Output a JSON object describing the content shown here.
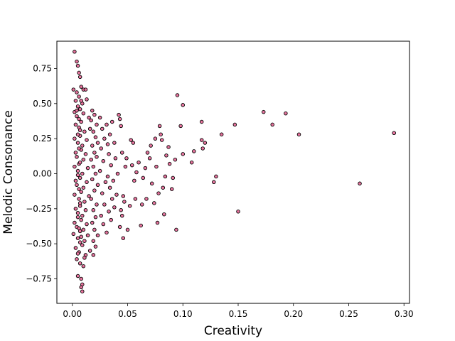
{
  "chart_data": {
    "type": "scatter",
    "title": "",
    "xlabel": "Creativity",
    "ylabel": "Melodic Consonance",
    "xlim": [
      -0.014,
      0.305
    ],
    "ylim": [
      -0.925,
      0.945
    ],
    "xticks": [
      0.0,
      0.05,
      0.1,
      0.15,
      0.2,
      0.25,
      0.3
    ],
    "xtick_labels": [
      "0.00",
      "0.05",
      "0.10",
      "0.15",
      "0.20",
      "0.25",
      "0.30"
    ],
    "yticks": [
      -0.75,
      -0.5,
      -0.25,
      0.0,
      0.25,
      0.5,
      0.75
    ],
    "ytick_labels": [
      "−0.75",
      "−0.50",
      "−0.25",
      "0.00",
      "0.25",
      "0.50",
      "0.75"
    ],
    "grid": false,
    "legend": "none",
    "marker_color": "#e8749e",
    "marker_edge_color": "#000000",
    "points": [
      [
        0.002,
        0.87
      ],
      [
        0.004,
        0.8
      ],
      [
        0.005,
        0.77
      ],
      [
        0.006,
        0.72
      ],
      [
        0.007,
        0.69
      ],
      [
        0.001,
        0.6
      ],
      [
        0.004,
        0.58
      ],
      [
        0.008,
        0.62
      ],
      [
        0.01,
        0.6
      ],
      [
        0.012,
        0.6
      ],
      [
        0.003,
        0.52
      ],
      [
        0.005,
        0.48
      ],
      [
        0.006,
        0.55
      ],
      [
        0.009,
        0.5
      ],
      [
        0.013,
        0.53
      ],
      [
        0.002,
        0.44
      ],
      [
        0.004,
        0.41
      ],
      [
        0.007,
        0.46
      ],
      [
        0.01,
        0.43
      ],
      [
        0.015,
        0.4
      ],
      [
        0.003,
        0.35
      ],
      [
        0.006,
        0.33
      ],
      [
        0.008,
        0.37
      ],
      [
        0.011,
        0.3
      ],
      [
        0.016,
        0.32
      ],
      [
        0.002,
        0.25
      ],
      [
        0.005,
        0.22
      ],
      [
        0.007,
        0.27
      ],
      [
        0.009,
        0.2
      ],
      [
        0.013,
        0.24
      ],
      [
        0.003,
        0.15
      ],
      [
        0.004,
        0.12
      ],
      [
        0.008,
        0.17
      ],
      [
        0.01,
        0.1
      ],
      [
        0.012,
        0.14
      ],
      [
        0.002,
        0.05
      ],
      [
        0.005,
        0.02
      ],
      [
        0.006,
        0.07
      ],
      [
        0.009,
        0.0
      ],
      [
        0.014,
        0.04
      ],
      [
        0.003,
        -0.05
      ],
      [
        0.004,
        -0.08
      ],
      [
        0.007,
        -0.03
      ],
      [
        0.01,
        -0.1
      ],
      [
        0.013,
        -0.06
      ],
      [
        0.002,
        -0.15
      ],
      [
        0.006,
        -0.18
      ],
      [
        0.008,
        -0.13
      ],
      [
        0.011,
        -0.2
      ],
      [
        0.015,
        -0.16
      ],
      [
        0.003,
        -0.25
      ],
      [
        0.005,
        -0.28
      ],
      [
        0.007,
        -0.23
      ],
      [
        0.009,
        -0.3
      ],
      [
        0.012,
        -0.26
      ],
      [
        0.002,
        -0.35
      ],
      [
        0.004,
        -0.38
      ],
      [
        0.008,
        -0.33
      ],
      [
        0.01,
        -0.4
      ],
      [
        0.013,
        -0.36
      ],
      [
        0.001,
        -0.43
      ],
      [
        0.005,
        -0.46
      ],
      [
        0.007,
        -0.41
      ],
      [
        0.011,
        -0.48
      ],
      [
        0.014,
        -0.44
      ],
      [
        0.003,
        -0.53
      ],
      [
        0.006,
        -0.56
      ],
      [
        0.009,
        -0.51
      ],
      [
        0.012,
        -0.58
      ],
      [
        0.004,
        -0.61
      ],
      [
        0.007,
        -0.64
      ],
      [
        0.01,
        -0.66
      ],
      [
        0.005,
        -0.73
      ],
      [
        0.008,
        -0.75
      ],
      [
        0.009,
        -0.79
      ],
      [
        0.008,
        -0.81
      ],
      [
        0.009,
        -0.84
      ],
      [
        0.011,
        -0.6
      ],
      [
        0.016,
        -0.55
      ],
      [
        0.019,
        -0.58
      ],
      [
        0.004,
        0.45
      ],
      [
        0.006,
        0.39
      ],
      [
        0.007,
        0.31
      ],
      [
        0.005,
        0.28
      ],
      [
        0.006,
        0.18
      ],
      [
        0.007,
        0.08
      ],
      [
        0.005,
        -0.01
      ],
      [
        0.006,
        -0.11
      ],
      [
        0.007,
        -0.21
      ],
      [
        0.005,
        -0.31
      ],
      [
        0.006,
        -0.39
      ],
      [
        0.007,
        -0.49
      ],
      [
        0.005,
        -0.57
      ],
      [
        0.008,
        0.52
      ],
      [
        0.008,
        -0.45
      ],
      [
        0.018,
        0.45
      ],
      [
        0.017,
        0.38
      ],
      [
        0.02,
        0.42
      ],
      [
        0.022,
        0.35
      ],
      [
        0.019,
        0.3
      ],
      [
        0.021,
        0.26
      ],
      [
        0.018,
        0.2
      ],
      [
        0.023,
        0.22
      ],
      [
        0.02,
        0.15
      ],
      [
        0.017,
        0.1
      ],
      [
        0.022,
        0.12
      ],
      [
        0.019,
        0.05
      ],
      [
        0.021,
        0.0
      ],
      [
        0.018,
        -0.04
      ],
      [
        0.023,
        -0.08
      ],
      [
        0.02,
        -0.12
      ],
      [
        0.017,
        -0.18
      ],
      [
        0.022,
        -0.22
      ],
      [
        0.019,
        -0.26
      ],
      [
        0.021,
        -0.31
      ],
      [
        0.018,
        -0.35
      ],
      [
        0.02,
        -0.4
      ],
      [
        0.023,
        -0.44
      ],
      [
        0.019,
        -0.48
      ],
      [
        0.021,
        -0.52
      ],
      [
        0.025,
        0.4
      ],
      [
        0.027,
        0.32
      ],
      [
        0.029,
        0.25
      ],
      [
        0.026,
        0.18
      ],
      [
        0.028,
        0.09
      ],
      [
        0.025,
        0.02
      ],
      [
        0.03,
        -0.06
      ],
      [
        0.027,
        -0.14
      ],
      [
        0.029,
        -0.22
      ],
      [
        0.026,
        -0.3
      ],
      [
        0.028,
        -0.36
      ],
      [
        0.031,
        -0.42
      ],
      [
        0.032,
        0.21
      ],
      [
        0.034,
        0.28
      ],
      [
        0.033,
        0.14
      ],
      [
        0.035,
        0.06
      ],
      [
        0.032,
        -0.02
      ],
      [
        0.034,
        -0.1
      ],
      [
        0.036,
        -0.18
      ],
      [
        0.033,
        -0.27
      ],
      [
        0.035,
        -0.33
      ],
      [
        0.031,
        0.35
      ],
      [
        0.036,
        0.37
      ],
      [
        0.038,
        0.22
      ],
      [
        0.039,
        0.11
      ],
      [
        0.037,
        -0.05
      ],
      [
        0.04,
        -0.15
      ],
      [
        0.038,
        -0.24
      ],
      [
        0.041,
        0.0
      ],
      [
        0.042,
        0.42
      ],
      [
        0.043,
        0.39
      ],
      [
        0.044,
        0.34
      ],
      [
        0.045,
        0.15
      ],
      [
        0.046,
        -0.16
      ],
      [
        0.044,
        -0.26
      ],
      [
        0.045,
        -0.3
      ],
      [
        0.043,
        -0.38
      ],
      [
        0.047,
        -0.2
      ],
      [
        0.048,
        0.05
      ],
      [
        0.049,
        0.11
      ],
      [
        0.05,
        -0.4
      ],
      [
        0.046,
        -0.46
      ],
      [
        0.052,
        -0.23
      ],
      [
        0.053,
        0.24
      ],
      [
        0.055,
        0.22
      ],
      [
        0.054,
        0.06
      ],
      [
        0.056,
        -0.05
      ],
      [
        0.057,
        -0.18
      ],
      [
        0.058,
        0.01
      ],
      [
        0.06,
        0.08
      ],
      [
        0.062,
        -0.37
      ],
      [
        0.063,
        -0.22
      ],
      [
        0.064,
        -0.03
      ],
      [
        0.066,
        0.04
      ],
      [
        0.067,
        -0.18
      ],
      [
        0.068,
        0.15
      ],
      [
        0.07,
        0.11
      ],
      [
        0.071,
        0.2
      ],
      [
        0.072,
        -0.07
      ],
      [
        0.074,
        -0.21
      ],
      [
        0.075,
        0.25
      ],
      [
        0.076,
        0.05
      ],
      [
        0.077,
        -0.35
      ],
      [
        0.078,
        -0.14
      ],
      [
        0.079,
        0.34
      ],
      [
        0.08,
        0.28
      ],
      [
        0.081,
        0.24
      ],
      [
        0.082,
        -0.1
      ],
      [
        0.083,
        -0.29
      ],
      [
        0.084,
        -0.02
      ],
      [
        0.085,
        0.13
      ],
      [
        0.087,
        0.19
      ],
      [
        0.088,
        0.07
      ],
      [
        0.09,
        -0.11
      ],
      [
        0.091,
        -0.03
      ],
      [
        0.093,
        0.1
      ],
      [
        0.094,
        -0.4
      ],
      [
        0.095,
        0.56
      ],
      [
        0.098,
        0.34
      ],
      [
        0.1,
        0.49
      ],
      [
        0.1,
        0.14
      ],
      [
        0.108,
        0.08
      ],
      [
        0.11,
        0.16
      ],
      [
        0.117,
        0.37
      ],
      [
        0.117,
        0.24
      ],
      [
        0.118,
        0.18
      ],
      [
        0.12,
        0.22
      ],
      [
        0.128,
        -0.06
      ],
      [
        0.13,
        -0.02
      ],
      [
        0.135,
        0.28
      ],
      [
        0.147,
        0.35
      ],
      [
        0.15,
        -0.27
      ],
      [
        0.173,
        0.44
      ],
      [
        0.181,
        0.35
      ],
      [
        0.193,
        0.43
      ],
      [
        0.205,
        0.28
      ],
      [
        0.26,
        -0.07
      ],
      [
        0.291,
        0.29
      ]
    ]
  }
}
